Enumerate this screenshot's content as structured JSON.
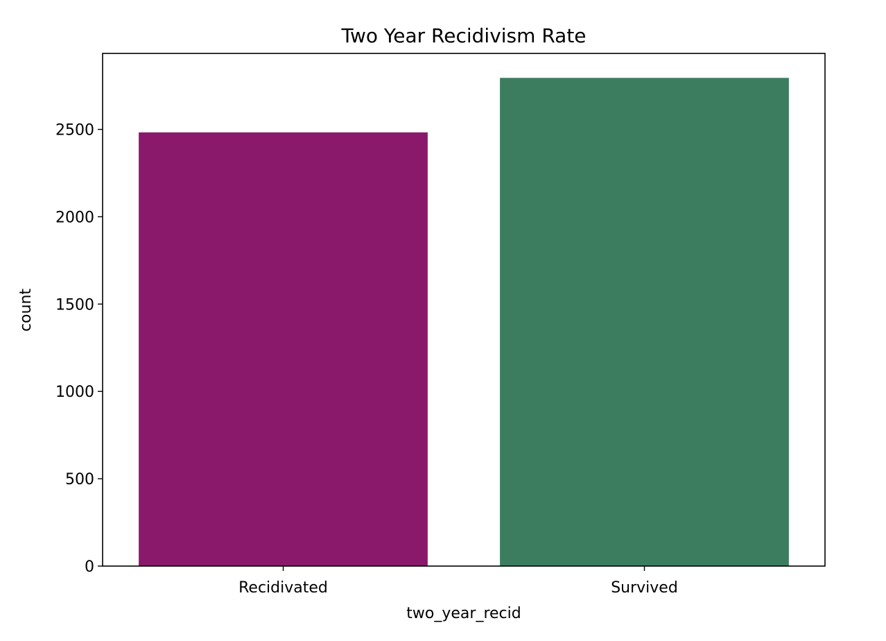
{
  "chart_data": {
    "type": "bar",
    "title": "Two Year Recidivism Rate",
    "xlabel": "two_year_recid",
    "ylabel": "count",
    "categories": [
      "Recidivated",
      "Survived"
    ],
    "values": [
      2483,
      2795
    ],
    "colors": [
      "#8b196b",
      "#3c7d60"
    ],
    "ylim": [
      0,
      2935
    ],
    "yticks": [
      0,
      500,
      1000,
      1500,
      2000,
      2500
    ],
    "grid": false,
    "legend": "none"
  }
}
